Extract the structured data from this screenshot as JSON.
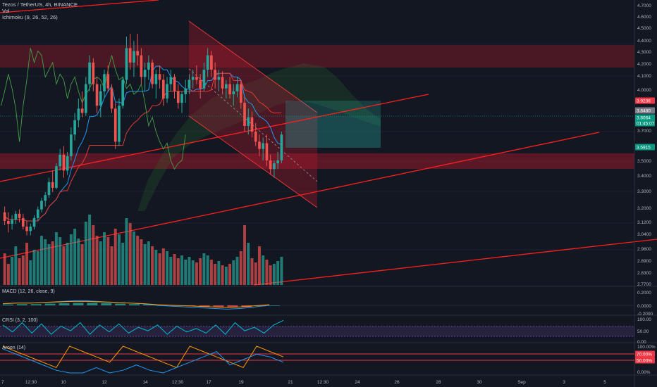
{
  "header": {
    "symbol_line": "Tezos / TetherUS, 4h, BINANCE",
    "vol_label": "Vol",
    "ichimoku_label": "Ichimoku (9, 26, 52, 26)"
  },
  "panes": {
    "macd_label": "MACD (12, 26, close, 9)",
    "crsi_label": "CRSI (3, 2, 100)",
    "aroon_label": "Aroon (14)"
  },
  "price_axis": {
    "ticks": [
      "4.7000",
      "4.6000",
      "4.5000",
      "4.4000",
      "4.3000",
      "4.2000",
      "4.1000",
      "4.0000",
      "3.7000",
      "3.6000",
      "3.5000",
      "3.4000",
      "3.3000",
      "3.2000",
      "3.1200",
      "3.0400",
      "2.9600",
      "2.8900",
      "2.8300",
      "2.7700"
    ],
    "tags": [
      {
        "text": "3.9236",
        "color": "#f23645"
      },
      {
        "text": "3.8480",
        "color": "#787b86"
      },
      {
        "text": "3.8064",
        "color": "#089981"
      },
      {
        "text": "01:45:07",
        "color": "#089981"
      },
      {
        "text": "3.5915",
        "color": "#089981"
      }
    ]
  },
  "macd_axis": {
    "ticks": [
      "0.2000",
      "0.0000",
      "-0.2000"
    ]
  },
  "crsi_axis": {
    "ticks": [
      "100.00",
      "50.00",
      "0.00"
    ]
  },
  "aroon_axis": {
    "ticks": [
      "100.00%",
      "0.00%"
    ],
    "tags": [
      {
        "text": "70.00%",
        "color": "#f23645"
      },
      {
        "text": "50.00%",
        "color": "#f23645"
      }
    ]
  },
  "time_axis": {
    "ticks": [
      "7",
      "12:30",
      "10",
      "12",
      "14",
      "12:30",
      "17",
      "19",
      "21",
      "12:30",
      "24",
      "26",
      "28",
      "30",
      "Sep",
      "3",
      "5"
    ]
  },
  "colors": {
    "background": "#131722",
    "up": "#26a69a",
    "down": "#ef5350",
    "trendline": "#ff1f1f",
    "zone": "#b2182b",
    "tenkan": "#2196f3",
    "kijun": "#e53935",
    "lagging": "#43a047"
  },
  "chart_data": {
    "type": "candlestick",
    "symbol": "Tezos / TetherUS",
    "timeframe": "4h",
    "exchange": "BINANCE",
    "x_ticks": [
      "7",
      "12:30",
      "10",
      "12",
      "14",
      "12:30",
      "17",
      "19",
      "21",
      "12:30",
      "24",
      "26",
      "28",
      "30",
      "Sep",
      "3",
      "5"
    ],
    "ylim": [
      2.77,
      4.7
    ],
    "last_price": 3.8064,
    "stop_level": 3.9236,
    "target_level": 3.848,
    "support_level": 3.5915,
    "ohlc": [
      [
        3.26,
        3.3,
        3.17,
        3.2
      ],
      [
        3.2,
        3.26,
        3.12,
        3.18
      ],
      [
        3.18,
        3.24,
        3.14,
        3.21
      ],
      [
        3.21,
        3.27,
        3.18,
        3.25
      ],
      [
        3.25,
        3.28,
        3.19,
        3.22
      ],
      [
        3.22,
        3.25,
        3.14,
        3.16
      ],
      [
        3.16,
        3.2,
        3.1,
        3.13
      ],
      [
        3.13,
        3.18,
        3.1,
        3.16
      ],
      [
        3.16,
        3.24,
        3.14,
        3.22
      ],
      [
        3.22,
        3.3,
        3.2,
        3.28
      ],
      [
        3.28,
        3.36,
        3.26,
        3.34
      ],
      [
        3.34,
        3.4,
        3.3,
        3.38
      ],
      [
        3.38,
        3.5,
        3.36,
        3.47
      ],
      [
        3.47,
        3.55,
        3.4,
        3.43
      ],
      [
        3.43,
        3.6,
        3.42,
        3.58
      ],
      [
        3.58,
        3.7,
        3.55,
        3.66
      ],
      [
        3.66,
        3.72,
        3.5,
        3.55
      ],
      [
        3.55,
        3.68,
        3.52,
        3.65
      ],
      [
        3.65,
        3.85,
        3.62,
        3.8
      ],
      [
        3.8,
        3.95,
        3.76,
        3.9
      ],
      [
        3.9,
        4.05,
        3.85,
        3.98
      ],
      [
        3.98,
        4.1,
        3.92,
        3.95
      ],
      [
        3.95,
        4.2,
        3.93,
        4.15
      ],
      [
        4.15,
        4.35,
        4.1,
        4.3
      ],
      [
        4.3,
        4.33,
        4.1,
        4.15
      ],
      [
        4.15,
        4.2,
        3.95,
        4.0
      ],
      [
        4.0,
        4.15,
        3.92,
        4.1
      ],
      [
        4.1,
        4.25,
        4.05,
        4.22
      ],
      [
        4.22,
        4.28,
        4.1,
        4.12
      ],
      [
        4.12,
        4.15,
        3.95,
        3.98
      ],
      [
        3.98,
        4.02,
        3.7,
        3.75
      ],
      [
        3.75,
        4.05,
        3.72,
        4.0
      ],
      [
        4.0,
        4.2,
        3.98,
        4.18
      ],
      [
        4.18,
        4.48,
        4.15,
        4.4
      ],
      [
        4.4,
        4.5,
        4.25,
        4.3
      ],
      [
        4.3,
        4.45,
        4.2,
        4.38
      ],
      [
        4.38,
        4.5,
        4.28,
        4.35
      ],
      [
        4.35,
        4.4,
        4.15,
        4.2
      ],
      [
        4.2,
        4.3,
        4.1,
        4.25
      ],
      [
        4.25,
        4.35,
        4.18,
        4.3
      ],
      [
        4.3,
        4.32,
        4.12,
        4.15
      ],
      [
        4.15,
        4.25,
        4.05,
        4.22
      ],
      [
        4.22,
        4.28,
        4.12,
        4.18
      ],
      [
        4.18,
        4.22,
        4.0,
        4.05
      ],
      [
        4.05,
        4.2,
        4.02,
        4.15
      ],
      [
        4.15,
        4.25,
        4.1,
        4.2
      ],
      [
        4.2,
        4.22,
        4.05,
        4.1
      ],
      [
        4.1,
        4.15,
        3.98,
        4.02
      ],
      [
        4.02,
        4.1,
        3.95,
        4.08
      ],
      [
        4.08,
        4.18,
        4.02,
        4.12
      ],
      [
        4.12,
        4.22,
        4.08,
        4.18
      ],
      [
        4.18,
        4.25,
        4.12,
        4.2
      ],
      [
        4.2,
        4.28,
        4.15,
        4.18
      ],
      [
        4.18,
        4.22,
        4.05,
        4.12
      ],
      [
        4.12,
        4.3,
        4.1,
        4.25
      ],
      [
        4.25,
        4.4,
        4.2,
        4.35
      ],
      [
        4.35,
        4.38,
        4.2,
        4.25
      ],
      [
        4.25,
        4.3,
        4.12,
        4.18
      ],
      [
        4.18,
        4.25,
        4.1,
        4.2
      ],
      [
        4.2,
        4.24,
        4.08,
        4.12
      ],
      [
        4.12,
        4.18,
        4.05,
        4.15
      ],
      [
        4.15,
        4.2,
        4.05,
        4.08
      ],
      [
        4.08,
        4.15,
        4.0,
        4.1
      ],
      [
        4.1,
        4.2,
        4.06,
        4.15
      ],
      [
        4.15,
        4.18,
        3.98,
        4.02
      ],
      [
        4.02,
        4.06,
        3.82,
        3.86
      ],
      [
        3.86,
        3.98,
        3.8,
        3.92
      ],
      [
        3.92,
        3.96,
        3.78,
        3.82
      ],
      [
        3.82,
        3.88,
        3.72,
        3.75
      ],
      [
        3.75,
        3.8,
        3.65,
        3.7
      ],
      [
        3.7,
        3.78,
        3.62,
        3.74
      ],
      [
        3.74,
        3.8,
        3.58,
        3.62
      ],
      [
        3.62,
        3.66,
        3.52,
        3.56
      ],
      [
        3.56,
        3.62,
        3.5,
        3.6
      ],
      [
        3.6,
        3.68,
        3.56,
        3.62
      ],
      [
        3.62,
        3.82,
        3.6,
        3.8
      ]
    ],
    "volume": [
      45,
      30,
      40,
      55,
      38,
      42,
      60,
      35,
      50,
      48,
      70,
      65,
      58,
      62,
      75,
      68,
      55,
      60,
      72,
      80,
      66,
      58,
      90,
      100,
      85,
      70,
      62,
      75,
      68,
      55,
      80,
      72,
      60,
      95,
      88,
      76,
      70,
      65,
      58,
      62,
      55,
      50,
      45,
      52,
      48,
      40,
      44,
      38,
      42,
      36,
      40,
      35,
      32,
      38,
      45,
      42,
      36,
      30,
      34,
      28,
      26,
      30,
      35,
      40,
      48,
      85,
      60,
      38,
      32,
      55,
      42,
      36,
      28,
      30,
      34,
      40
    ],
    "macd": [
      0.02,
      0.03,
      0.03,
      0.04,
      0.05,
      0.06,
      0.06,
      0.05,
      0.04,
      0.03,
      0.02,
      0.0,
      -0.01,
      -0.02,
      -0.03,
      -0.04,
      -0.05,
      -0.04,
      -0.02,
      0.0
    ],
    "crsi": [
      70,
      40,
      80,
      35,
      75,
      30,
      65,
      45,
      80,
      30,
      70,
      40,
      75,
      35,
      60,
      45,
      70,
      30,
      65,
      40,
      55,
      35,
      70,
      30,
      80,
      45,
      60,
      35,
      70,
      90
    ],
    "aroon_up": [
      100,
      80,
      60,
      40,
      20,
      100,
      80,
      60,
      40,
      100,
      80,
      60,
      40,
      20,
      100,
      80,
      60,
      40,
      20,
      100,
      80,
      60
    ],
    "aroon_down": [
      90,
      70,
      50,
      30,
      10,
      0,
      0,
      20,
      0,
      10,
      30,
      10,
      0,
      20,
      40,
      60,
      80,
      30,
      50,
      70,
      60,
      40
    ]
  }
}
